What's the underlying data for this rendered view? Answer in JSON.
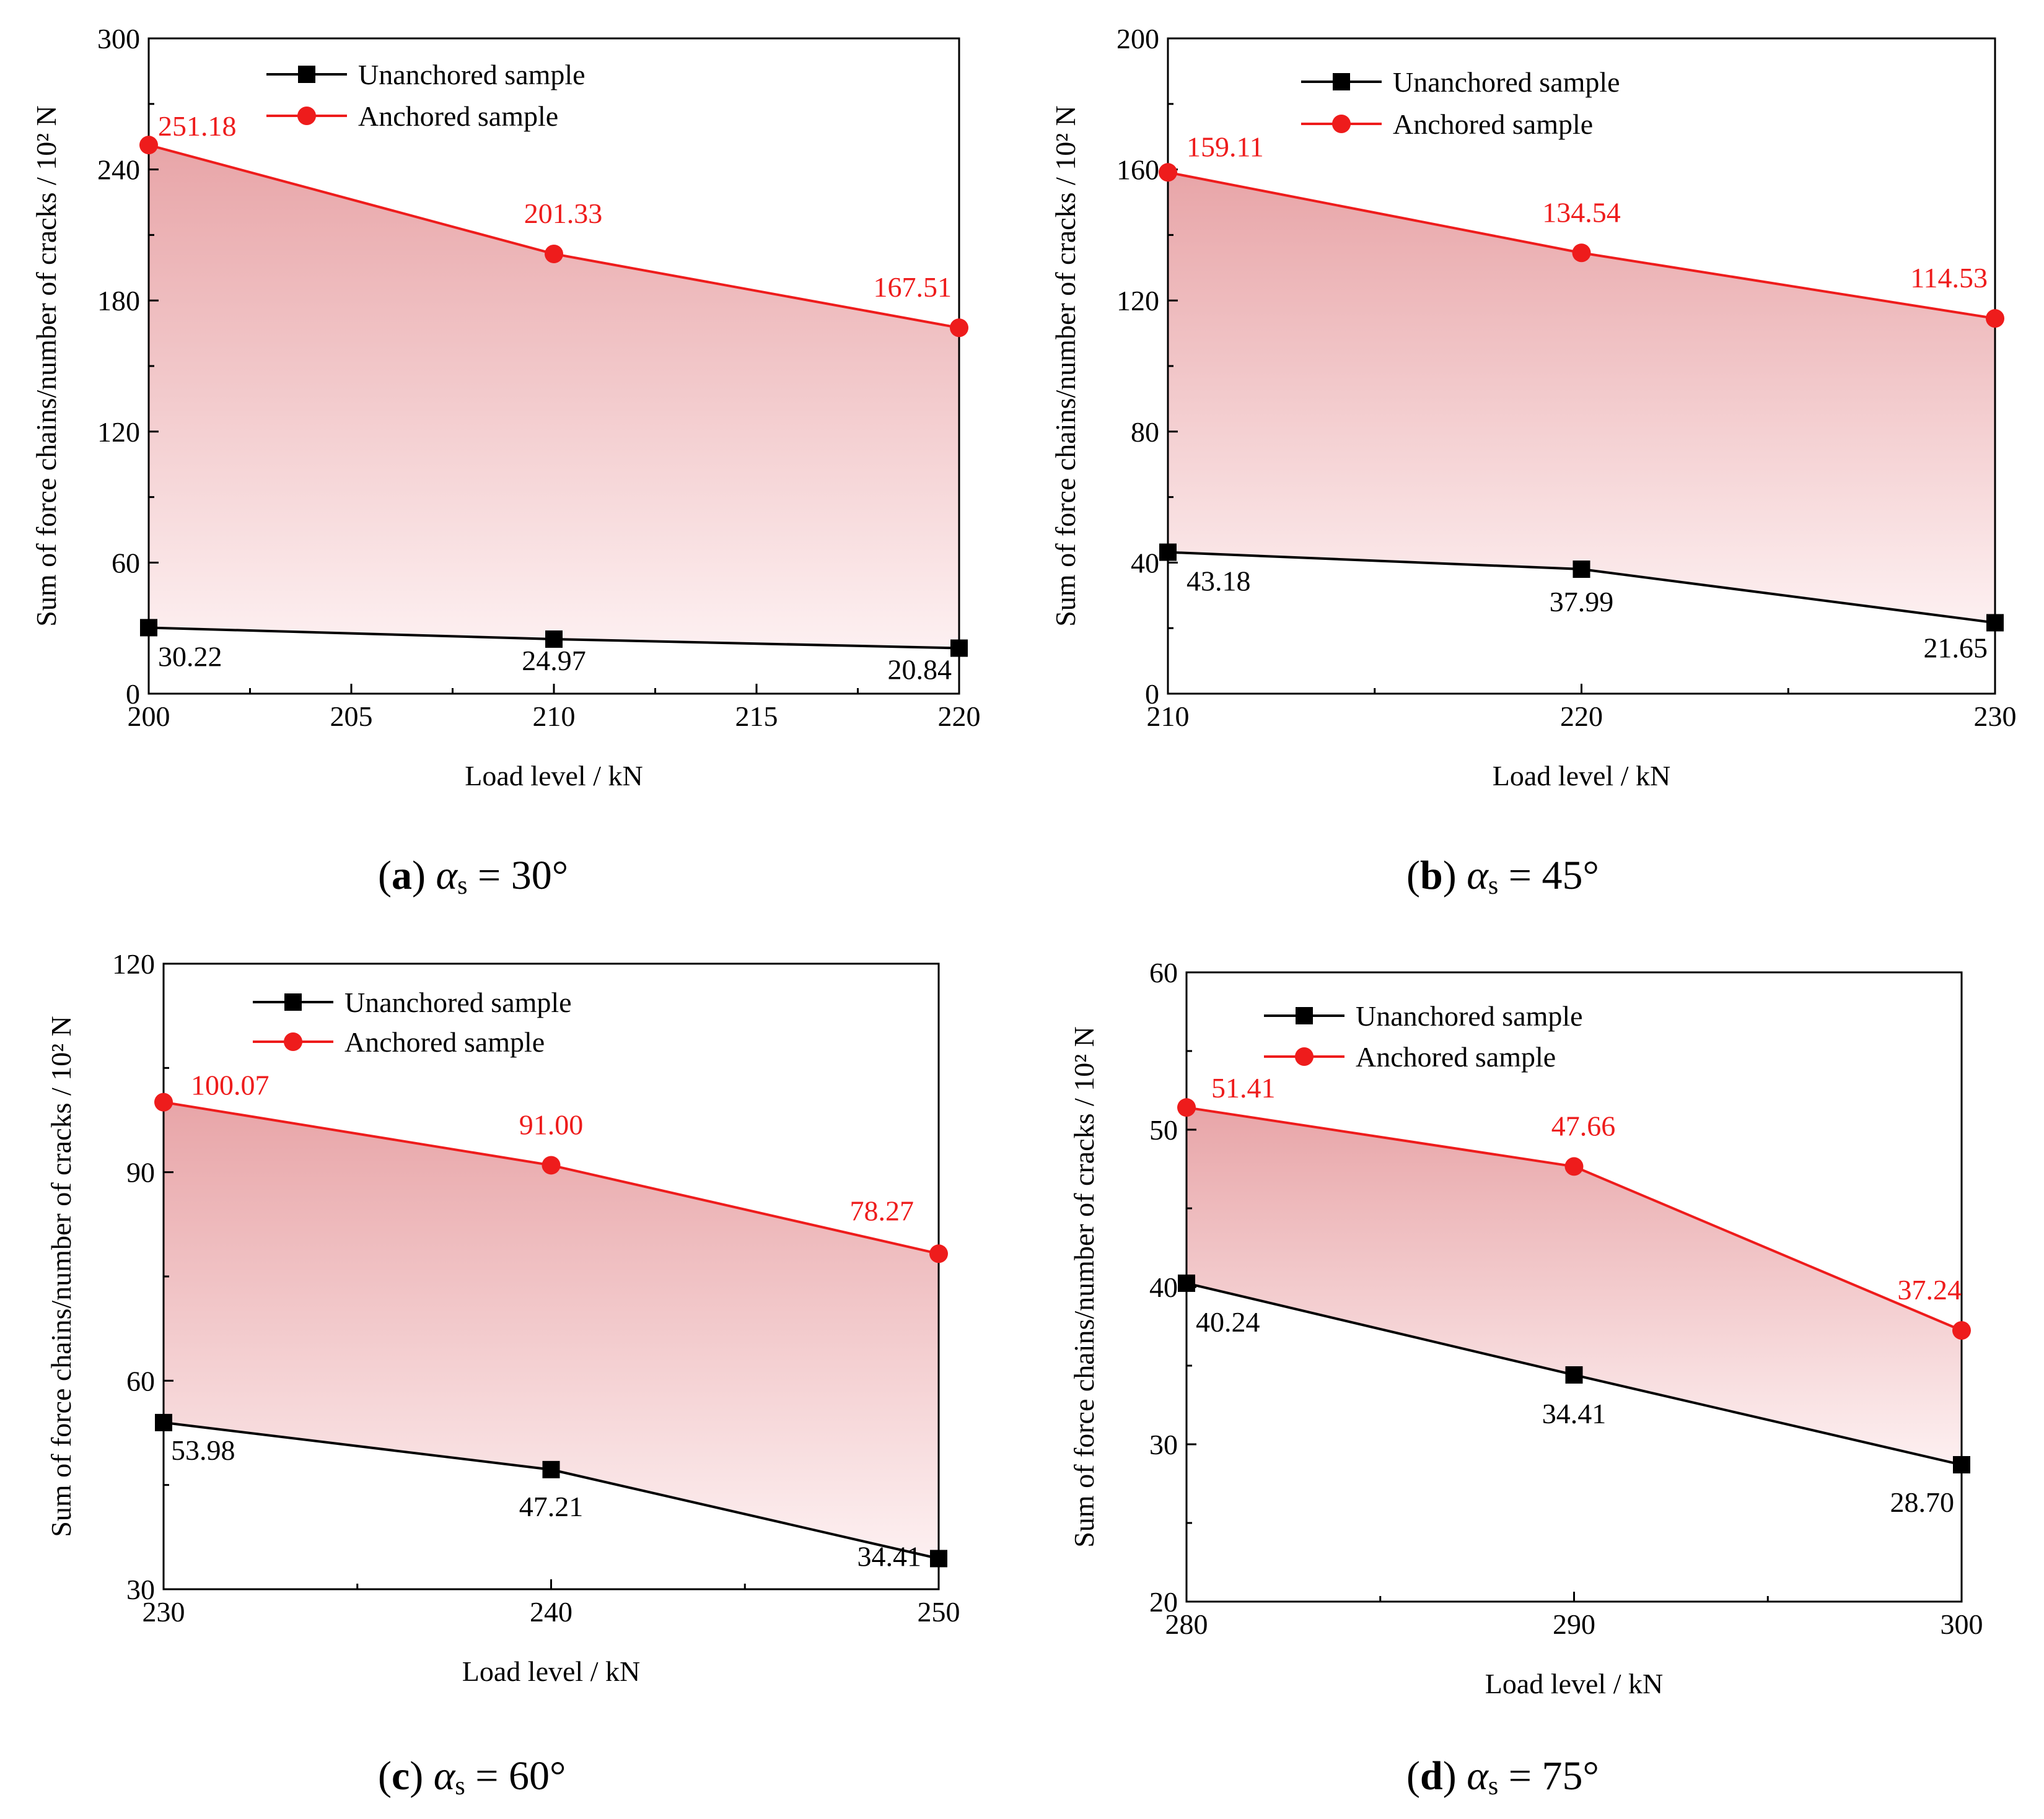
{
  "captions": [
    {
      "letter": "a",
      "symbol": "α",
      "subscript": "s",
      "value": "30°"
    },
    {
      "letter": "b",
      "symbol": "α",
      "subscript": "s",
      "value": "45°"
    },
    {
      "letter": "c",
      "symbol": "α",
      "subscript": "s",
      "value": "60°"
    },
    {
      "letter": "d",
      "symbol": "α",
      "subscript": "s",
      "value": "75°"
    }
  ],
  "colors": {
    "unanchored": "#000000",
    "anchored": "#ee1c1c",
    "fill_top": "#e8a5a8",
    "fill_bottom": "#fdf0f1"
  },
  "chart_data": [
    {
      "type": "line",
      "panel": "a",
      "xlabel": "Load level / kN",
      "ylabel": "Sum of force chains/number of cracks / 10² N",
      "x": [
        200,
        210,
        220
      ],
      "xlim": [
        200,
        220
      ],
      "ylim": [
        0,
        300
      ],
      "xticks": [
        "200",
        "205",
        "210",
        "215",
        "220"
      ],
      "yticks": [
        "0",
        "60",
        "120",
        "180",
        "240",
        "300"
      ],
      "legend": "top-center",
      "series": [
        {
          "name": "Unanchored sample",
          "marker": "square",
          "values": [
            30.22,
            24.97,
            20.84
          ],
          "labels": [
            "30.22",
            "24.97",
            "20.84"
          ]
        },
        {
          "name": "Anchored sample",
          "marker": "circle",
          "values": [
            251.18,
            201.33,
            167.51
          ],
          "labels": [
            "251.18",
            "201.33",
            "167.51"
          ]
        }
      ]
    },
    {
      "type": "line",
      "panel": "b",
      "xlabel": "Load level / kN",
      "ylabel": "Sum of force chains/number of cracks / 10² N",
      "x": [
        210,
        220,
        230
      ],
      "xlim": [
        210,
        230
      ],
      "ylim": [
        0,
        200
      ],
      "xticks": [
        "210",
        "220",
        "230"
      ],
      "yticks": [
        "0",
        "40",
        "80",
        "120",
        "160",
        "200"
      ],
      "legend": "top-center",
      "series": [
        {
          "name": "Unanchored sample",
          "marker": "square",
          "values": [
            43.18,
            37.99,
            21.65
          ],
          "labels": [
            "43.18",
            "37.99",
            "21.65"
          ]
        },
        {
          "name": "Anchored sample",
          "marker": "circle",
          "values": [
            159.11,
            134.54,
            114.53
          ],
          "labels": [
            "159.11",
            "134.54",
            "114.53"
          ]
        }
      ]
    },
    {
      "type": "line",
      "panel": "c",
      "xlabel": "Load level / kN",
      "ylabel": "Sum of force chains/number of cracks / 10² N",
      "x": [
        230,
        240,
        250
      ],
      "xlim": [
        230,
        250
      ],
      "ylim": [
        30,
        120
      ],
      "xticks": [
        "230",
        "240",
        "250"
      ],
      "yticks": [
        "30",
        "60",
        "90",
        "120"
      ],
      "legend": "top-center",
      "series": [
        {
          "name": "Unanchored sample",
          "marker": "square",
          "values": [
            53.98,
            47.21,
            34.41
          ],
          "labels": [
            "53.98",
            "47.21",
            "34.41"
          ]
        },
        {
          "name": "Anchored sample",
          "marker": "circle",
          "values": [
            100.07,
            91.0,
            78.27
          ],
          "labels": [
            "100.07",
            "91.00",
            "78.27"
          ]
        }
      ]
    },
    {
      "type": "line",
      "panel": "d",
      "xlabel": "Load level / kN",
      "ylabel": "Sum of force chains/number of cracks / 10² N",
      "x": [
        280,
        290,
        300
      ],
      "xlim": [
        280,
        300
      ],
      "ylim": [
        20,
        60
      ],
      "xticks": [
        "280",
        "290",
        "300"
      ],
      "yticks": [
        "20",
        "30",
        "40",
        "50",
        "60"
      ],
      "legend": "top-center",
      "series": [
        {
          "name": "Unanchored sample",
          "marker": "square",
          "values": [
            40.24,
            34.41,
            28.7
          ],
          "labels": [
            "40.24",
            "34.41",
            "28.70"
          ]
        },
        {
          "name": "Anchored sample",
          "marker": "circle",
          "values": [
            51.41,
            47.66,
            37.24
          ],
          "labels": [
            "51.41",
            "47.66",
            "37.24"
          ]
        }
      ]
    }
  ]
}
